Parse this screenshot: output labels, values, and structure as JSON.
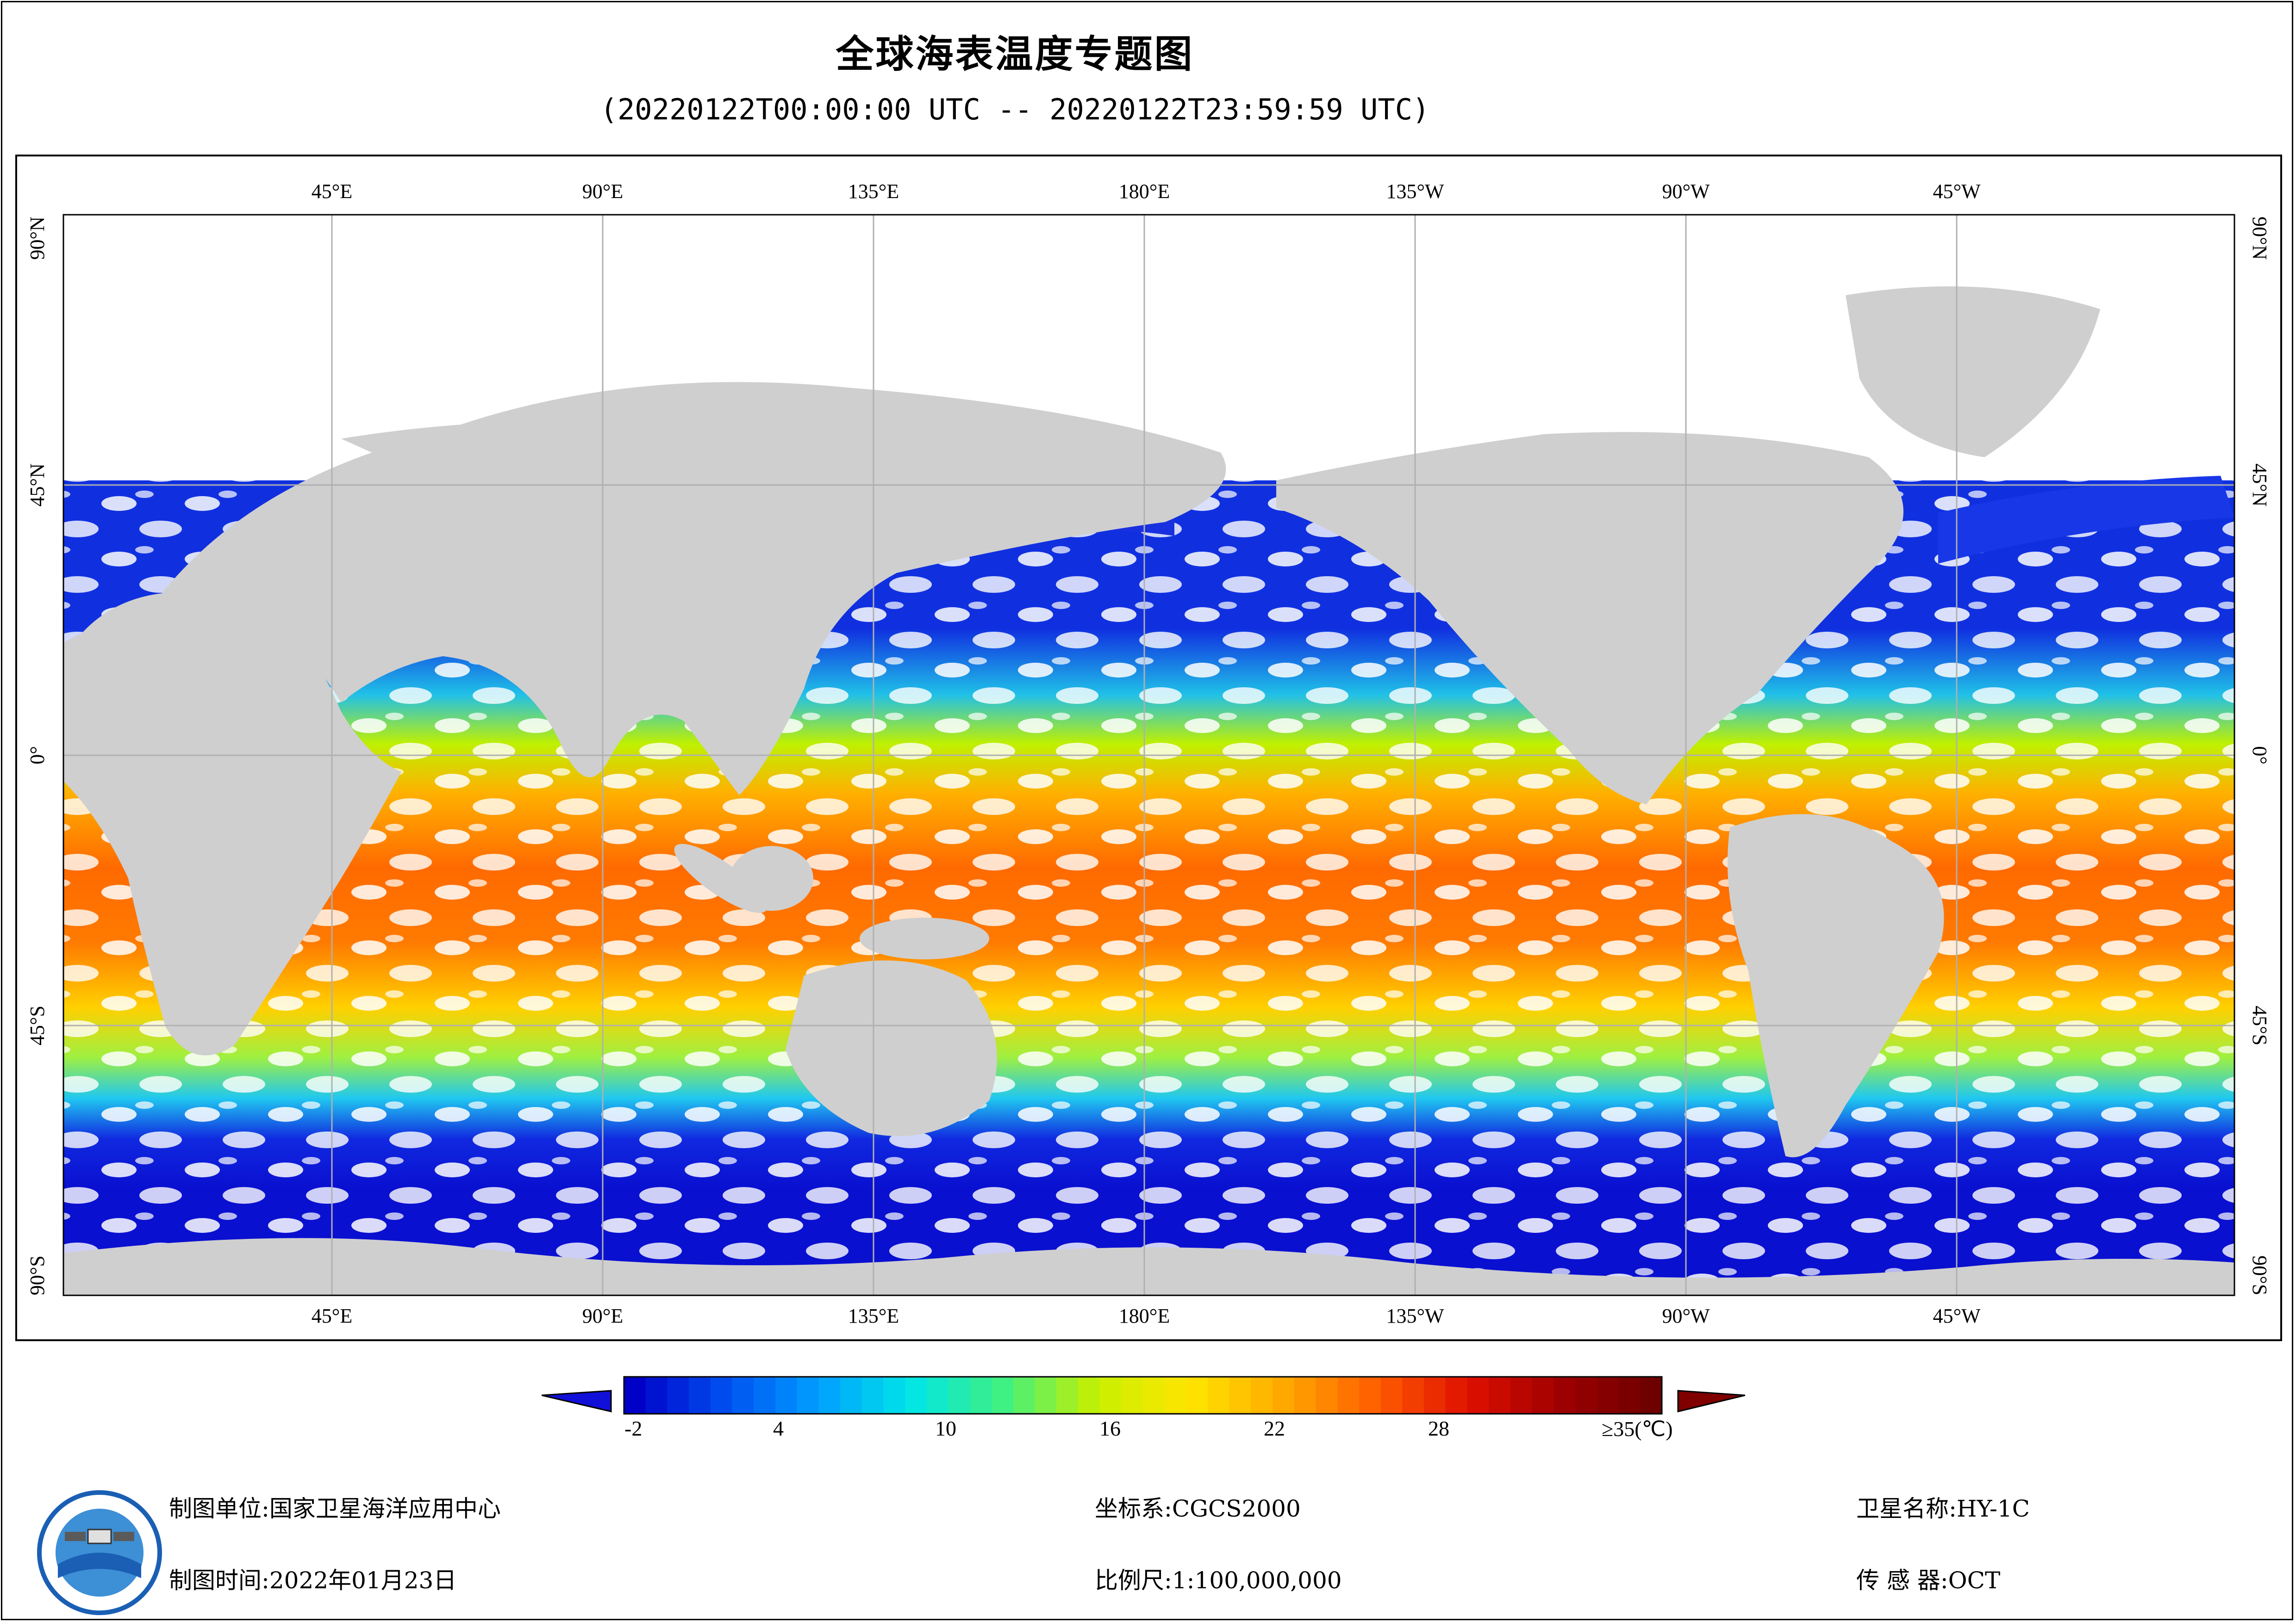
{
  "title": "全球海表温度专题图",
  "subtitle": "(20220122T00:00:00 UTC -- 20220122T23:59:59 UTC)",
  "axes": {
    "top_labels": [
      "45°E",
      "90°E",
      "135°E",
      "180°E",
      "135°W",
      "90°W",
      "45°W"
    ],
    "bottom_labels": [
      "45°E",
      "90°E",
      "135°E",
      "180°E",
      "135°W",
      "90°W",
      "45°W"
    ],
    "lat_labels": [
      "90°N",
      "45°N",
      "0°",
      "45°S",
      "90°S"
    ]
  },
  "colorbar": {
    "labels": [
      "-2",
      "4",
      "10",
      "16",
      "22",
      "28",
      "≥35(℃)"
    ],
    "min": -2,
    "max": 35,
    "unit": "℃",
    "colors": [
      "#0000c8",
      "#0050f0",
      "#00a0ff",
      "#00e6e6",
      "#40f080",
      "#c8f000",
      "#ffe600",
      "#ffaa00",
      "#ff6000",
      "#e01000",
      "#a00000",
      "#6e0000"
    ],
    "under_color": "#1010d8",
    "over_color": "#800000"
  },
  "map_colors": {
    "land": "#cfcfcf",
    "no_data": "#ffffff",
    "graticule": "#b0b0b0"
  },
  "footer": {
    "unit": "制图单位:国家卫星海洋应用中心",
    "time": "制图时间:2022年01月23日",
    "coord": "坐标系:CGCS2000",
    "scale": "比例尺:1:100,000,000",
    "satellite": "卫星名称:HY-1C",
    "sensor": "传 感 器:OCT"
  }
}
